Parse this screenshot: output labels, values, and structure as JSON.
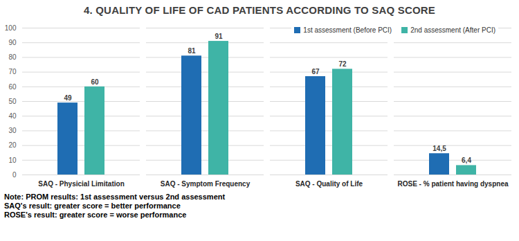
{
  "chart_data": {
    "type": "bar",
    "title": "4. QUALITY OF LIFE OF CAD PATIENTS ACCORDING TO SAQ SCORE",
    "categories": [
      "SAQ - Physicial Limitation",
      "SAQ - Symptom Frequency",
      "SAQ - Quality of Life",
      "ROSE - % patient having dyspnea"
    ],
    "series": [
      {
        "name": "1st assessment (Before PCI)",
        "color": "#1f6db3",
        "values": [
          49,
          81,
          67,
          14.5
        ],
        "value_labels": [
          "49",
          "81",
          "67",
          "14,5"
        ]
      },
      {
        "name": "2nd assessment (After PCI)",
        "color": "#3fb4a6",
        "values": [
          60,
          91,
          72,
          6.4
        ],
        "value_labels": [
          "60",
          "91",
          "72",
          "6,4"
        ]
      }
    ],
    "ylim": [
      0,
      100
    ],
    "yticks": [
      0,
      10,
      20,
      30,
      40,
      50,
      60,
      70,
      80,
      90,
      100
    ],
    "grid": true,
    "data_labels": true,
    "legend": "upper right",
    "notes": [
      "Note: PROM results: 1st assessment versus 2nd assessment",
      "SAQ's result: greater score = better performance",
      "ROSE's result: greater score = worse performance"
    ]
  }
}
